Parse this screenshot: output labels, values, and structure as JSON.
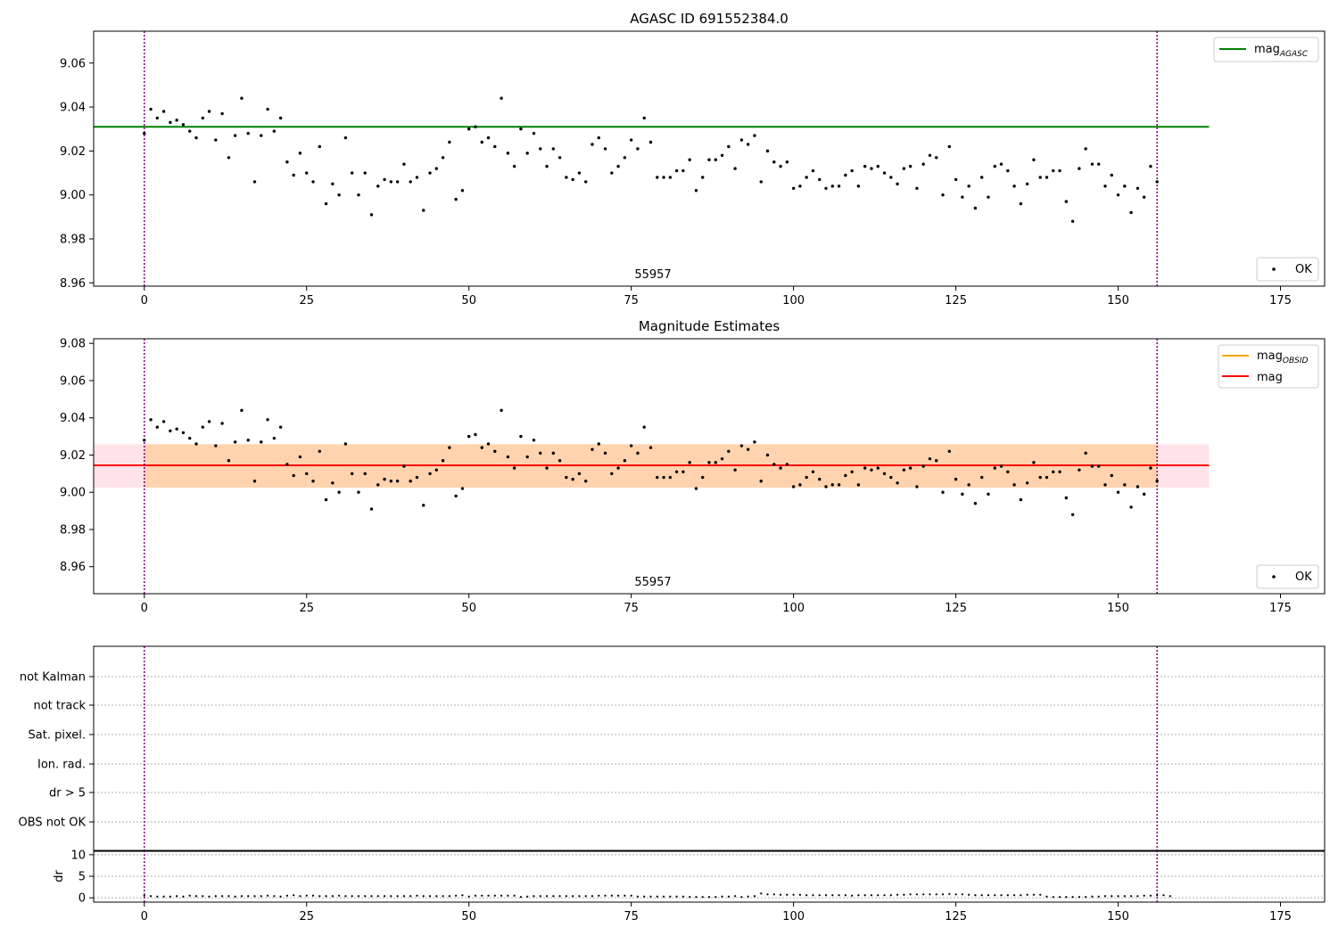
{
  "chart_data": [
    {
      "type": "scatter",
      "title": "AGASC ID 691552384.0",
      "xlim": [
        -7.8,
        181.8
      ],
      "ylim": [
        8.9585,
        9.0745
      ],
      "xticks": [
        "0",
        "25",
        "50",
        "75",
        "100",
        "125",
        "150",
        "175"
      ],
      "yticks": [
        "8.96",
        "8.98",
        "9.00",
        "9.02",
        "9.04",
        "9.06"
      ],
      "obsid_label": "55957",
      "legend_lines": [
        {
          "label": "mag",
          "sub": "AGASC",
          "color": "#008000"
        }
      ],
      "legend_points": {
        "label": "OK",
        "color": "#000000"
      },
      "hline": {
        "value": 9.031,
        "x_end": 164,
        "color": "#008000"
      },
      "vlines": [
        0,
        156
      ],
      "vline_color": "#800080",
      "series": [
        {
          "name": "OK",
          "color": "#000000",
          "x": [
            0,
            1,
            2,
            3,
            4,
            5,
            6,
            7,
            8,
            9,
            10,
            11,
            12,
            13,
            14,
            15,
            16,
            17,
            18,
            19,
            20,
            21,
            22,
            23,
            24,
            25,
            26,
            27,
            28,
            29,
            30,
            31,
            32,
            33,
            34,
            35,
            36,
            37,
            38,
            39,
            40,
            41,
            42,
            43,
            44,
            45,
            46,
            47,
            48,
            49,
            50,
            51,
            52,
            53,
            54,
            55,
            56,
            57,
            58,
            59,
            60,
            61,
            62,
            63,
            64,
            65,
            66,
            67,
            68,
            69,
            70,
            71,
            72,
            73,
            74,
            75,
            76,
            77,
            78,
            79,
            80,
            81,
            82,
            83,
            84,
            85,
            86,
            87,
            88,
            89,
            90,
            91,
            92,
            93,
            94,
            95,
            96,
            97,
            98,
            99,
            100,
            101,
            102,
            103,
            104,
            105,
            106,
            107,
            108,
            109,
            110,
            111,
            112,
            113,
            114,
            115,
            116,
            117,
            118,
            119,
            120,
            121,
            122,
            123,
            124,
            125,
            126,
            127,
            128,
            129,
            130,
            131,
            132,
            133,
            134,
            135,
            136,
            137,
            138,
            139,
            140,
            141,
            142,
            143,
            144,
            145,
            146,
            147,
            148,
            149,
            150,
            151,
            152,
            153,
            154,
            155,
            156
          ],
          "y": [
            9.028,
            9.039,
            9.035,
            9.038,
            9.033,
            9.034,
            9.032,
            9.029,
            9.026,
            9.035,
            9.038,
            9.025,
            9.037,
            9.017,
            9.027,
            9.044,
            9.028,
            9.006,
            9.027,
            9.039,
            9.029,
            9.035,
            9.015,
            9.009,
            9.019,
            9.01,
            9.006,
            9.022,
            8.996,
            9.005,
            9.0,
            9.026,
            9.01,
            9.0,
            9.01,
            8.991,
            9.004,
            9.007,
            9.006,
            9.006,
            9.014,
            9.006,
            9.008,
            8.993,
            9.01,
            9.012,
            9.017,
            9.024,
            8.998,
            9.002,
            9.03,
            9.031,
            9.024,
            9.026,
            9.022,
            9.044,
            9.019,
            9.013,
            9.03,
            9.019,
            9.028,
            9.021,
            9.013,
            9.021,
            9.017,
            9.008,
            9.007,
            9.01,
            9.006,
            9.023,
            9.026,
            9.021,
            9.01,
            9.013,
            9.017,
            9.025,
            9.021,
            9.035,
            9.024,
            9.008,
            9.008,
            9.008,
            9.011,
            9.011,
            9.016,
            9.002,
            9.008,
            9.016,
            9.016,
            9.018,
            9.022,
            9.012,
            9.025,
            9.023,
            9.027,
            9.006,
            9.02,
            9.015,
            9.013,
            9.015,
            9.003,
            9.004,
            9.008,
            9.011,
            9.007,
            9.003,
            9.004,
            9.004,
            9.009,
            9.011,
            9.004,
            9.013,
            9.012,
            9.013,
            9.01,
            9.008,
            9.005,
            9.012,
            9.013,
            9.003,
            9.014,
            9.018,
            9.017,
            9.0,
            9.022,
            9.007,
            8.999,
            9.004,
            8.994,
            9.008,
            8.999,
            9.013,
            9.014,
            9.011,
            9.004,
            8.996,
            9.005,
            9.016,
            9.008,
            9.008,
            9.011,
            9.011,
            8.997,
            8.988,
            9.012,
            9.021,
            9.014,
            9.014,
            9.004,
            9.009,
            9.0,
            9.004,
            8.992,
            9.003,
            8.999,
            9.013,
            9.006
          ]
        }
      ]
    },
    {
      "type": "scatter",
      "title": "Magnitude Estimates",
      "xlim": [
        -7.8,
        181.8
      ],
      "ylim": [
        8.9455,
        9.0825
      ],
      "xticks": [
        "0",
        "25",
        "50",
        "75",
        "100",
        "125",
        "150",
        "175"
      ],
      "yticks": [
        "8.96",
        "8.98",
        "9.00",
        "9.02",
        "9.04",
        "9.06",
        "9.08"
      ],
      "obsid_label": "55957",
      "legend_lines": [
        {
          "label": "mag",
          "sub": "OBSID",
          "color": "#ffa500"
        },
        {
          "label": "mag",
          "sub": "",
          "color": "#ff0000"
        }
      ],
      "legend_points": {
        "label": "OK",
        "color": "#000000"
      },
      "hline": {
        "value": 9.0145,
        "x_end": 164,
        "color": "#ff0000"
      },
      "band_pink": {
        "low": 9.0025,
        "high": 9.0258,
        "x_start": -7.8,
        "x_end": 164,
        "color": "#ffc0cb"
      },
      "band_orange": {
        "low": 9.0025,
        "high": 9.0258,
        "x_start": 0,
        "x_end": 156,
        "color": "#ffa500"
      },
      "vlines": [
        0,
        156
      ],
      "vline_color": "#800080"
    },
    {
      "type": "scatter",
      "xlim": [
        -7.8,
        181.8
      ],
      "categories": [
        "not Kalman",
        "not track",
        "Sat. pixel.",
        "Ion. rad.",
        "dr > 5",
        "OBS not OK"
      ],
      "ylabel": "dr",
      "dr_ylim": [
        -1,
        11
      ],
      "dr_yticks": [
        "0",
        "5",
        "10"
      ],
      "xticks": [
        "0",
        "25",
        "50",
        "75",
        "100",
        "125",
        "150",
        "175"
      ],
      "vlines": [
        0,
        156
      ],
      "dr_values": [
        0.5,
        0.4,
        0.3,
        0.3,
        0.3,
        0.4,
        0.3,
        0.5,
        0.4,
        0.4,
        0.3,
        0.4,
        0.4,
        0.4,
        0.3,
        0.4,
        0.4,
        0.4,
        0.4,
        0.5,
        0.4,
        0.3,
        0.5,
        0.6,
        0.4,
        0.5,
        0.5,
        0.4,
        0.4,
        0.4,
        0.5,
        0.4,
        0.4,
        0.4,
        0.4,
        0.4,
        0.4,
        0.4,
        0.4,
        0.4,
        0.4,
        0.4,
        0.5,
        0.4,
        0.4,
        0.4,
        0.4,
        0.4,
        0.5,
        0.6,
        0.3,
        0.5,
        0.5,
        0.5,
        0.5,
        0.5,
        0.5,
        0.5,
        0.2,
        0.3,
        0.4,
        0.4,
        0.4,
        0.4,
        0.4,
        0.4,
        0.4,
        0.4,
        0.4,
        0.4,
        0.5,
        0.5,
        0.5,
        0.5,
        0.5,
        0.5,
        0.3,
        0.3,
        0.3,
        0.3,
        0.3,
        0.3,
        0.3,
        0.3,
        0.2,
        0.2,
        0.2,
        0.2,
        0.2,
        0.3,
        0.3,
        0.4,
        0.2,
        0.3,
        0.4,
        1.0,
        0.8,
        0.8,
        0.7,
        0.7,
        0.7,
        0.7,
        0.6,
        0.6,
        0.6,
        0.6,
        0.6,
        0.6,
        0.6,
        0.5,
        0.6,
        0.6,
        0.6,
        0.6,
        0.6,
        0.6,
        0.7,
        0.7,
        0.8,
        0.8,
        0.8,
        0.8,
        0.8,
        0.8,
        0.9,
        0.8,
        0.8,
        0.7,
        0.6,
        0.6,
        0.6,
        0.6,
        0.6,
        0.6,
        0.6,
        0.6,
        0.7,
        0.7,
        0.7,
        0.3,
        0.2,
        0.2,
        0.2,
        0.2,
        0.2,
        0.2,
        0.3,
        0.3,
        0.4,
        0.4,
        0.4,
        0.4,
        0.4,
        0.4,
        0.5,
        0.5,
        0.6,
        0.6,
        0.4
      ]
    }
  ]
}
